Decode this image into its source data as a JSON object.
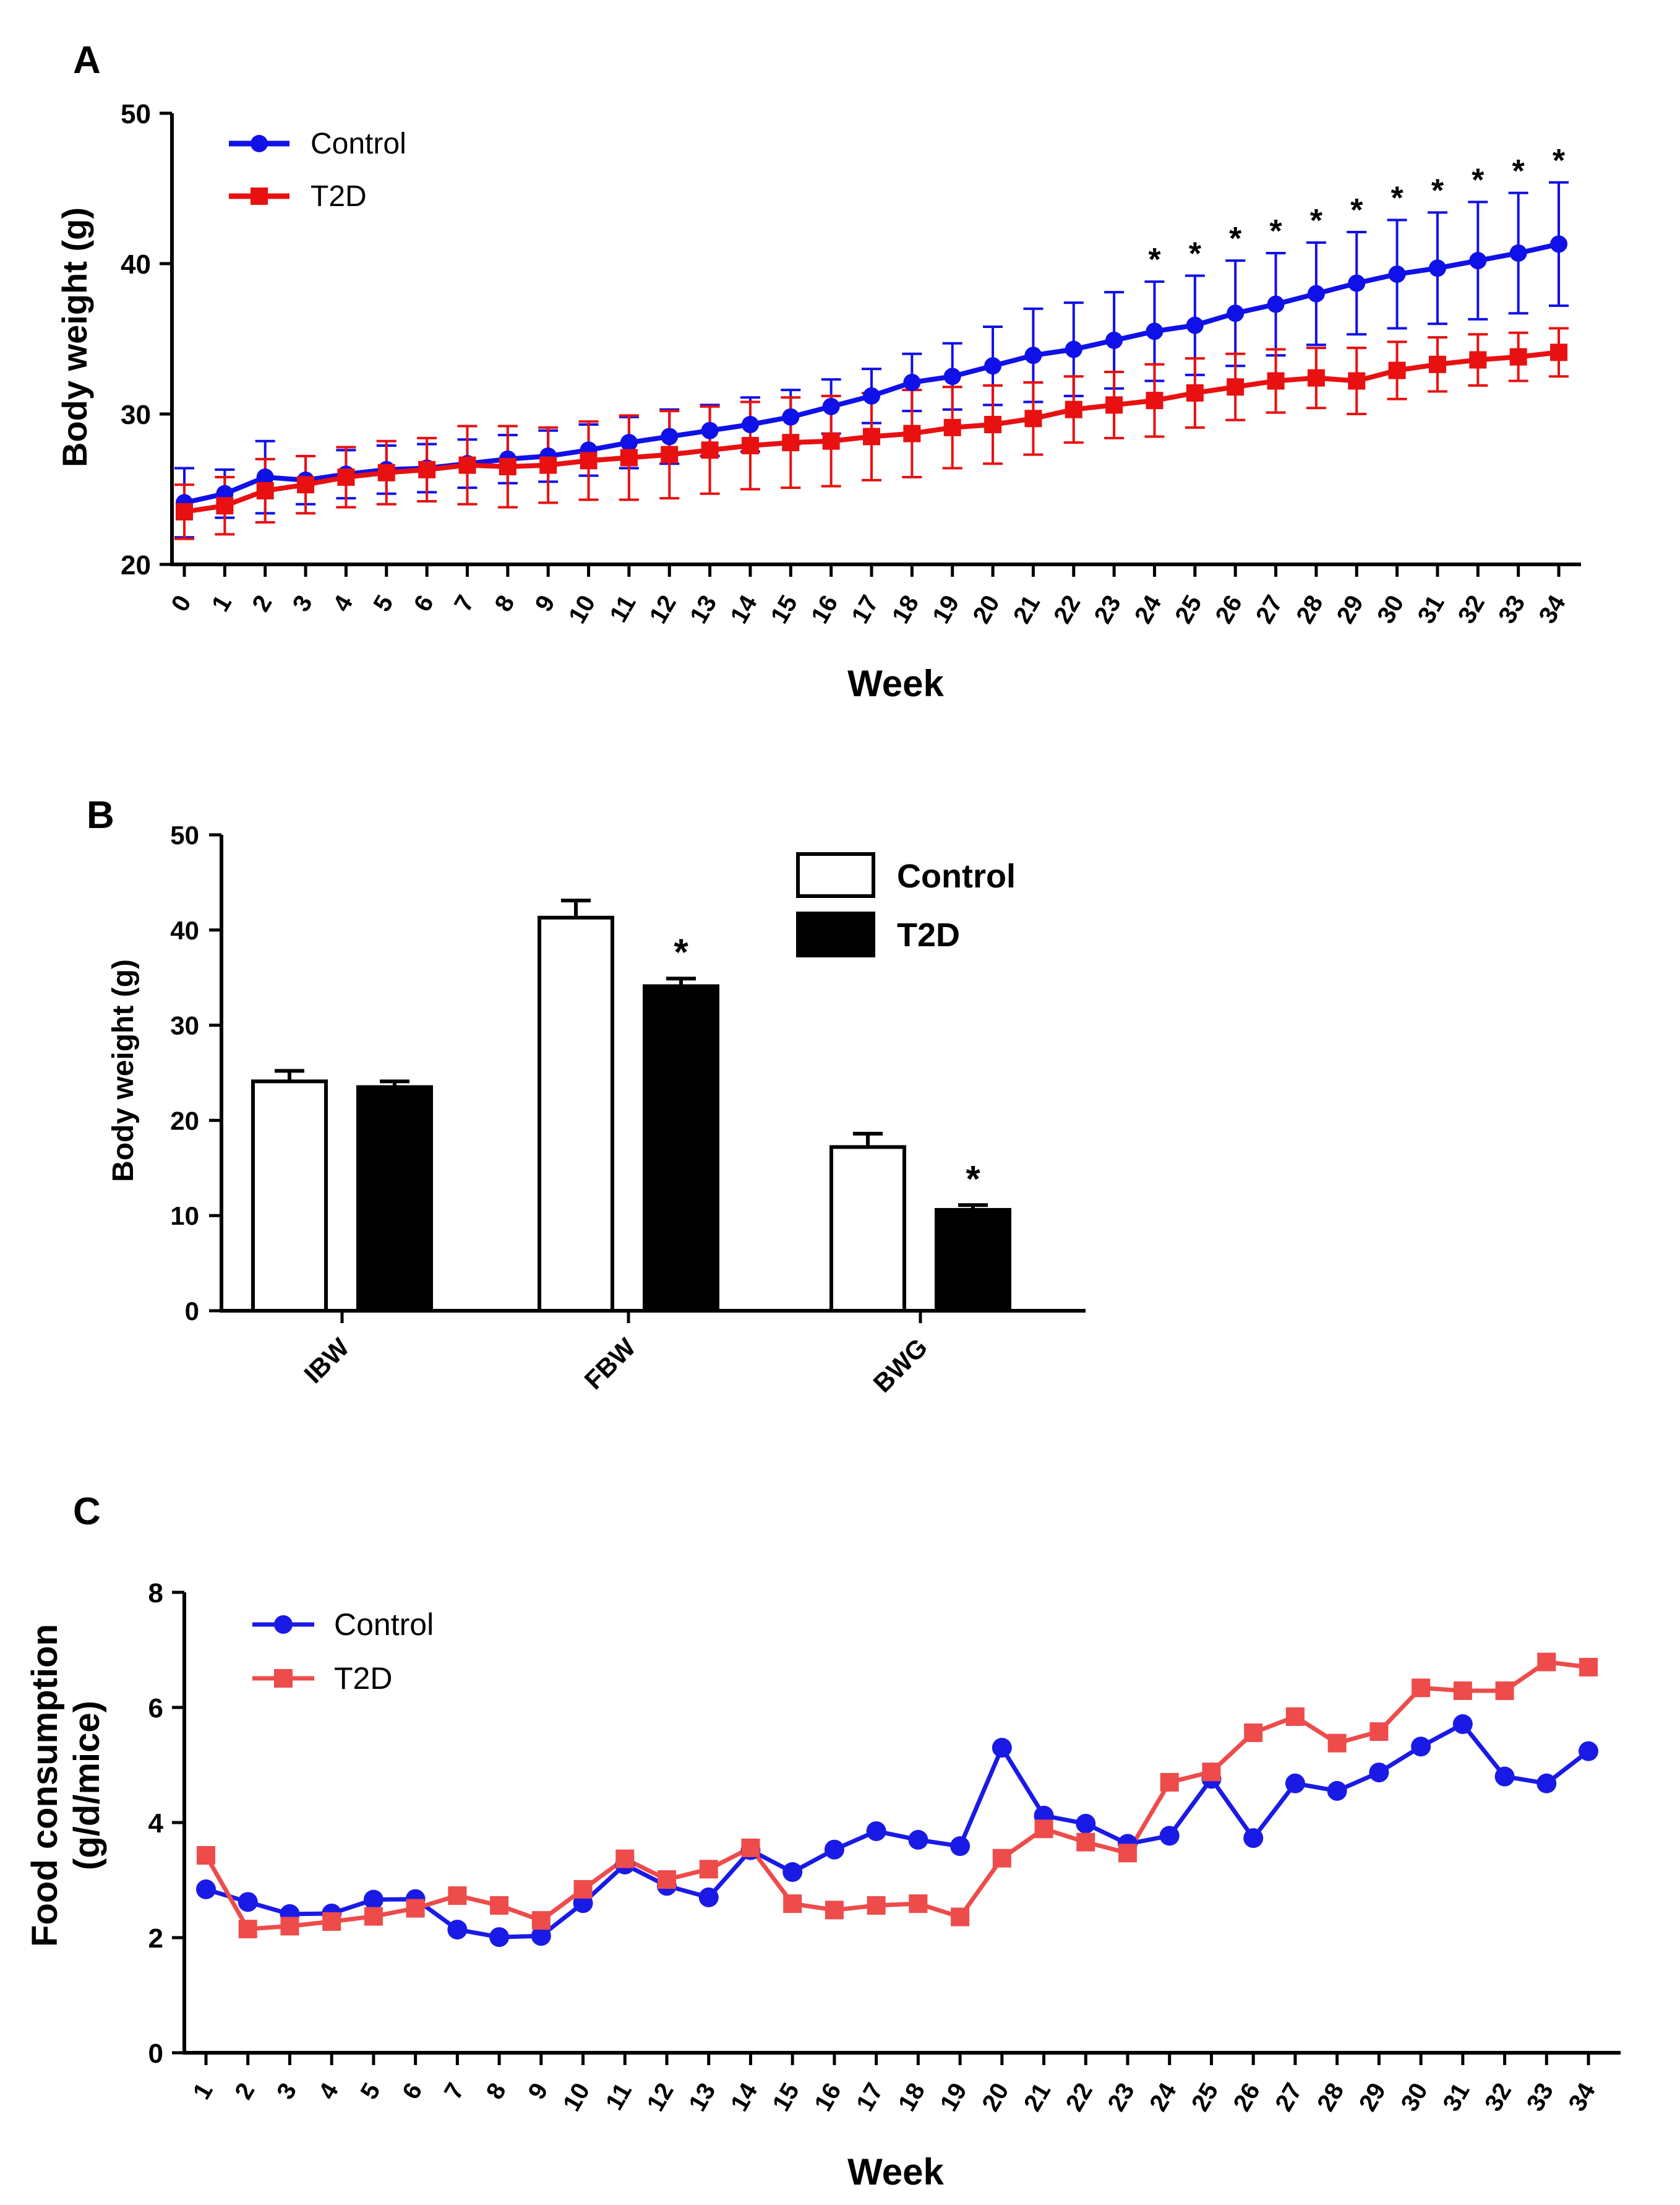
{
  "chart_data": [
    {
      "panel": "A",
      "type": "line",
      "xlabel": "Week",
      "ylabel": "Body weight (g)",
      "ylim": [
        20,
        50
      ],
      "yticks": [
        20,
        30,
        40,
        50
      ],
      "x": [
        0,
        1,
        2,
        3,
        4,
        5,
        6,
        7,
        8,
        9,
        10,
        11,
        12,
        13,
        14,
        15,
        16,
        17,
        18,
        19,
        20,
        21,
        22,
        23,
        24,
        25,
        26,
        27,
        28,
        29,
        30,
        31,
        32,
        33,
        34
      ],
      "error_bars": true,
      "legend_position": "top-left",
      "series": [
        {
          "name": "Control",
          "color": "#1010e8",
          "marker": "circle",
          "values": [
            24.1,
            24.7,
            25.8,
            25.6,
            26.0,
            26.3,
            26.4,
            26.7,
            27.0,
            27.2,
            27.6,
            28.1,
            28.5,
            28.9,
            29.3,
            29.8,
            30.5,
            31.2,
            32.1,
            32.5,
            33.2,
            33.9,
            34.3,
            34.9,
            35.5,
            35.9,
            36.7,
            37.3,
            38.0,
            38.7,
            39.3,
            39.7,
            40.2,
            40.7,
            41.3
          ],
          "errors": [
            2.3,
            1.6,
            2.4,
            1.6,
            1.6,
            1.6,
            1.6,
            1.6,
            1.6,
            1.7,
            1.7,
            1.7,
            1.8,
            1.7,
            1.8,
            1.8,
            1.8,
            1.8,
            1.9,
            2.2,
            2.6,
            3.1,
            3.1,
            3.2,
            3.3,
            3.3,
            3.5,
            3.4,
            3.4,
            3.4,
            3.6,
            3.7,
            3.9,
            4.0,
            4.1
          ]
        },
        {
          "name": "T2D",
          "color": "#e81010",
          "marker": "square",
          "values": [
            23.5,
            23.9,
            24.9,
            25.3,
            25.8,
            26.1,
            26.3,
            26.6,
            26.5,
            26.6,
            26.9,
            27.1,
            27.3,
            27.6,
            27.9,
            28.1,
            28.2,
            28.5,
            28.7,
            29.1,
            29.3,
            29.7,
            30.3,
            30.6,
            30.9,
            31.4,
            31.8,
            32.2,
            32.4,
            32.2,
            32.9,
            33.3,
            33.6,
            33.8,
            34.1
          ],
          "errors": [
            1.8,
            1.9,
            2.1,
            1.9,
            2.0,
            2.1,
            2.1,
            2.6,
            2.7,
            2.5,
            2.6,
            2.8,
            2.9,
            2.9,
            2.9,
            3.0,
            3.0,
            2.9,
            2.9,
            2.7,
            2.6,
            2.4,
            2.2,
            2.2,
            2.4,
            2.3,
            2.2,
            2.1,
            2.0,
            2.2,
            1.9,
            1.8,
            1.7,
            1.6,
            1.6
          ]
        }
      ],
      "significance_weeks": [
        24,
        25,
        26,
        27,
        28,
        29,
        30,
        31,
        32,
        33,
        34
      ],
      "significance_mark": "*"
    },
    {
      "panel": "B",
      "type": "bar",
      "ylabel": "Body weight (g)",
      "ylim": [
        0,
        50
      ],
      "yticks": [
        0,
        10,
        20,
        30,
        40,
        50
      ],
      "categories": [
        "IBW",
        "FBW",
        "BWG"
      ],
      "legend_position": "top-right",
      "series": [
        {
          "name": "Control",
          "fill": "#ffffff",
          "values": [
            24.1,
            41.3,
            17.2
          ],
          "errors": [
            1.1,
            1.8,
            1.4
          ]
        },
        {
          "name": "T2D",
          "fill": "#000000",
          "values": [
            23.5,
            34.1,
            10.6
          ],
          "errors": [
            0.6,
            0.8,
            0.5
          ]
        }
      ],
      "significance": [
        null,
        "*",
        "*"
      ]
    },
    {
      "panel": "C",
      "type": "line",
      "xlabel": "Week",
      "ylabel_lines": [
        "Food consumption",
        "(g/d/mice)"
      ],
      "ylim": [
        0,
        8
      ],
      "yticks": [
        0,
        2,
        4,
        6,
        8
      ],
      "x": [
        1,
        2,
        3,
        4,
        5,
        6,
        7,
        8,
        9,
        10,
        11,
        12,
        13,
        14,
        15,
        16,
        17,
        18,
        19,
        20,
        21,
        22,
        23,
        24,
        25,
        26,
        27,
        28,
        29,
        30,
        31,
        32,
        33,
        34
      ],
      "legend_position": "top-left",
      "series": [
        {
          "name": "Control",
          "color": "#1a1ae6",
          "marker": "circle",
          "values": [
            2.84,
            2.62,
            2.41,
            2.42,
            2.66,
            2.67,
            2.14,
            2.01,
            2.03,
            2.6,
            3.27,
            2.9,
            2.7,
            3.52,
            3.14,
            3.53,
            3.85,
            3.7,
            3.59,
            5.3,
            4.12,
            3.98,
            3.63,
            3.77,
            4.76,
            3.73,
            4.68,
            4.55,
            4.87,
            5.32,
            5.71,
            4.8,
            4.68,
            5.24
          ]
        },
        {
          "name": "T2D",
          "color": "#ee4b4b",
          "marker": "square",
          "values": [
            3.43,
            2.15,
            2.2,
            2.28,
            2.37,
            2.51,
            2.73,
            2.56,
            2.3,
            2.84,
            3.37,
            3.01,
            3.19,
            3.56,
            2.59,
            2.48,
            2.56,
            2.59,
            2.36,
            3.38,
            3.89,
            3.66,
            3.47,
            4.7,
            4.88,
            5.56,
            5.84,
            5.38,
            5.58,
            6.34,
            6.29,
            6.29,
            6.79,
            6.7
          ]
        }
      ]
    }
  ]
}
